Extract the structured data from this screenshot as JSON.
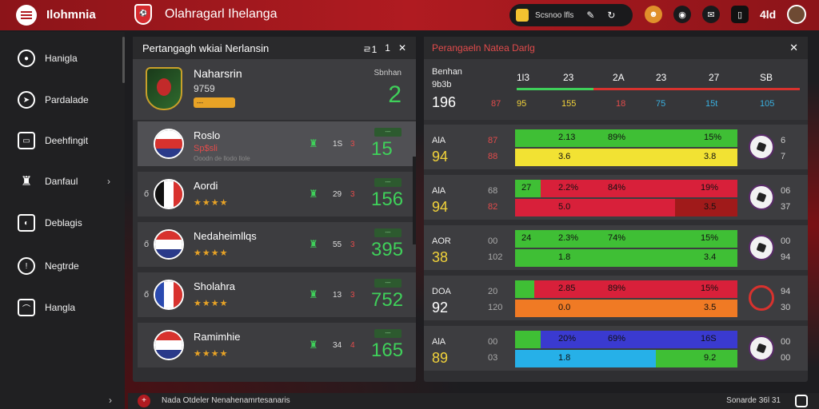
{
  "app": {
    "title": "Ilohmnia",
    "screen_title": "Olahragarl Ihelanga"
  },
  "topbar": {
    "pill_text": "Scsnoo lfls",
    "num": "4ld",
    "icons": [
      "coin-icon",
      "edit-icon",
      "refresh-icon",
      "mascot-icon",
      "ball-icon",
      "chat-icon",
      "phone-icon",
      "avatar"
    ]
  },
  "sidebar": {
    "items": [
      {
        "label": "Hanigla",
        "icon": "ball-icon"
      },
      {
        "label": "Pardalade",
        "icon": "compass-icon"
      },
      {
        "label": "Deehfingit",
        "icon": "briefcase-icon"
      },
      {
        "label": "Danfaul",
        "icon": "trophy-icon",
        "chevron": "›"
      },
      {
        "label": "Deblagis",
        "icon": "shield-icon"
      },
      {
        "label": "Negtrde",
        "icon": "clock-icon"
      },
      {
        "label": "Hangla",
        "icon": "chart-icon"
      }
    ],
    "foot_chevron": "›"
  },
  "left_panel": {
    "title": "Pertangagh wkiai Nerlansin",
    "controls": {
      "count": "ㄹ1",
      "num": "1",
      "close": "✕"
    },
    "featured": {
      "name": "Naharsrin",
      "sub": "9759",
      "badge": "---",
      "label": "Sbnhan",
      "big": "2"
    },
    "teams": [
      {
        "prefix": "",
        "name": "Roslo",
        "sub": "Sp$sli",
        "sub2": "Ooodn de llodo llole",
        "stars": "",
        "stat_a": "1S",
        "stat_b": "3",
        "tag": "---",
        "big": "15",
        "flag": [
          "#ffffff",
          "#d8322e",
          "#2a3a8a"
        ],
        "vert": false,
        "highlight": true
      },
      {
        "prefix": "ő",
        "name": "Aordi",
        "sub": "",
        "sub2": "",
        "stars": "★★★★",
        "stat_a": "29",
        "stat_b": "3",
        "tag": "---",
        "big": "156",
        "flag": [
          "#111111",
          "#ffffff",
          "#d8322e"
        ],
        "vert": true,
        "highlight": false
      },
      {
        "prefix": "ő",
        "name": "Nedaheimllqs",
        "sub": "",
        "sub2": "",
        "stars": "★★★★",
        "stat_a": "55",
        "stat_b": "3",
        "tag": "---",
        "big": "395",
        "flag": [
          "#d8322e",
          "#ffffff",
          "#2a3a8a"
        ],
        "vert": false,
        "highlight": false
      },
      {
        "prefix": "ő",
        "name": "Sholahra",
        "sub": "",
        "sub2": "",
        "stars": "★★★★",
        "stat_a": "13",
        "stat_b": "3",
        "tag": "---",
        "big": "752",
        "flag": [
          "#2a4ab0",
          "#ffffff",
          "#d8322e"
        ],
        "vert": true,
        "highlight": false
      },
      {
        "prefix": "",
        "name": "Ramimhie",
        "sub": "",
        "sub2": "",
        "stars": "★★★★",
        "stat_a": "34",
        "stat_b": "4",
        "tag": "---",
        "big": "165",
        "flag": [
          "#d8322e",
          "#ffffff",
          "#2a3a8a"
        ],
        "vert": false,
        "highlight": false
      }
    ]
  },
  "right_panel": {
    "title": "Perangaeln Natea Darlg",
    "close": "✕",
    "summary": {
      "lab1": "Benhan",
      "lab2": "9b3b",
      "big": "196",
      "cols": [
        "1l3",
        "23",
        "2A",
        "23",
        "27",
        "SB"
      ],
      "row2": [
        {
          "text": "87",
          "color": "#e14b4b"
        },
        {
          "text": "95",
          "color": "#f2d33a"
        },
        {
          "text": "155",
          "color": "#f2d33a"
        },
        {
          "text": "18",
          "color": "#e14b4b"
        },
        {
          "text": "75",
          "color": "#3ab0e0"
        },
        {
          "text": "15t",
          "color": "#3ab0e0"
        },
        {
          "text": "105",
          "color": "#3ab0e0"
        }
      ]
    },
    "matches": [
      {
        "code": "AlA",
        "big": "94",
        "big_white": false,
        "s1": "87",
        "s2": "88",
        "s1_color": "#e14b4b",
        "s2_color": "#e14b4b",
        "top": {
          "color": "#3fbf35",
          "accent": "",
          "accent_w": 0,
          "t1": "2.13",
          "t2": "89%",
          "t3": "15%"
        },
        "bot": {
          "color": "#f2e233",
          "accent": "",
          "accent_w": 0,
          "t1": "3.6",
          "t2": "",
          "t3": "3.8"
        },
        "r1": "6",
        "r2": "7",
        "ball_ring": false
      },
      {
        "code": "AlA",
        "big": "94",
        "big_white": false,
        "s1": "68",
        "s2": "82",
        "s1_color": "#aaaaaa",
        "s2_color": "#e14b4b",
        "top": {
          "color": "#d8203a",
          "accent": "#3fbf35",
          "accent_w": 32,
          "t1": "27",
          "t2": "2.2%",
          "t3": "84%",
          "t4": "19%"
        },
        "bot": {
          "color": "#d8203a",
          "accent": "#a01a1a",
          "accent_w": 78,
          "t1": "5.0",
          "t2": "",
          "t3": "3.5"
        },
        "r1": "06",
        "r2": "37",
        "ball_ring": false
      },
      {
        "code": "AOR",
        "big": "38",
        "big_white": false,
        "s1": "00",
        "s2": "102",
        "s1_color": "#aaaaaa",
        "s2_color": "#aaaaaa",
        "top": {
          "color": "#3fbf35",
          "accent": "",
          "accent_w": 0,
          "t1": "24",
          "t2": "2.3%",
          "t3": "74%",
          "t4": "15%"
        },
        "bot": {
          "color": "#3fbf35",
          "accent": "",
          "accent_w": 0,
          "t1": "1.8",
          "t2": "",
          "t3": "3.4"
        },
        "r1": "00",
        "r2": "94",
        "ball_ring": false
      },
      {
        "code": "DOA",
        "big": "92",
        "big_white": true,
        "s1": "20",
        "s2": "120",
        "s1_color": "#aaaaaa",
        "s2_color": "#aaaaaa",
        "top": {
          "color": "#d8203a",
          "accent": "#3fbf35",
          "accent_w": 24,
          "t1": "",
          "t2": "2.85",
          "t3": "89%",
          "t4": "15%"
        },
        "bot": {
          "color": "#f07a24",
          "accent": "",
          "accent_w": 0,
          "t1": "0.0",
          "t2": "",
          "t3": "3.5"
        },
        "r1": "94",
        "r2": "30",
        "ball_ring": true
      },
      {
        "code": "AlA",
        "big": "89",
        "big_white": false,
        "s1": "00",
        "s2": "03",
        "s1_color": "#aaaaaa",
        "s2_color": "#aaaaaa",
        "top": {
          "color": "#3a3ad0",
          "accent": "#3fbf35",
          "accent_w": 32,
          "t1": "",
          "t2": "20%",
          "t3": "69%",
          "t4": "16S"
        },
        "bot": {
          "color": "#26b0e8",
          "accent": "#3fbf35",
          "accent_w": 176,
          "t1": "1.8",
          "t2": "",
          "t3": "9.2"
        },
        "r1": "00",
        "r2": "00",
        "ball_ring": false
      }
    ]
  },
  "footer": {
    "text": "Nada  Otdeler  Nenahenamrtesanaris",
    "right": "Sonarde   36l 31"
  }
}
